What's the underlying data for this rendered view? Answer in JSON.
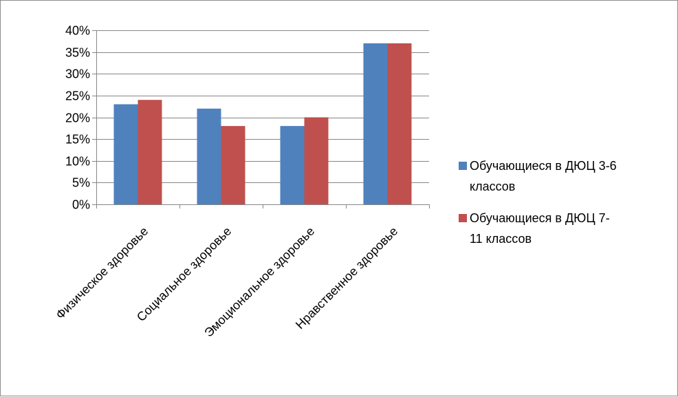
{
  "chart_data": {
    "type": "bar",
    "categories": [
      "Физическое здоровье",
      "Социальное здоровье",
      "Эмоциональное здоровье",
      "Нравственное здоровье"
    ],
    "series": [
      {
        "name": "Обучающиеся в ДЮЦ 3-6 классов",
        "name_lines": [
          "Обучающиеся в ДЮЦ 3-6",
          "классов"
        ],
        "color": "#4F81BD",
        "values": [
          23,
          22,
          18,
          37
        ]
      },
      {
        "name": "Обучающиеся в ДЮЦ 7-11 классов",
        "name_lines": [
          "Обучающиеся в ДЮЦ 7-",
          "11 классов"
        ],
        "color": "#C0504D",
        "values": [
          24,
          18,
          20,
          37
        ]
      }
    ],
    "y_ticks": [
      "0%",
      "5%",
      "10%",
      "15%",
      "20%",
      "25%",
      "30%",
      "35%",
      "40%"
    ],
    "ylim": [
      0,
      40
    ],
    "y_unit": "%",
    "grid": true,
    "legend_position": "right",
    "title": "",
    "xlabel": "",
    "ylabel": ""
  }
}
